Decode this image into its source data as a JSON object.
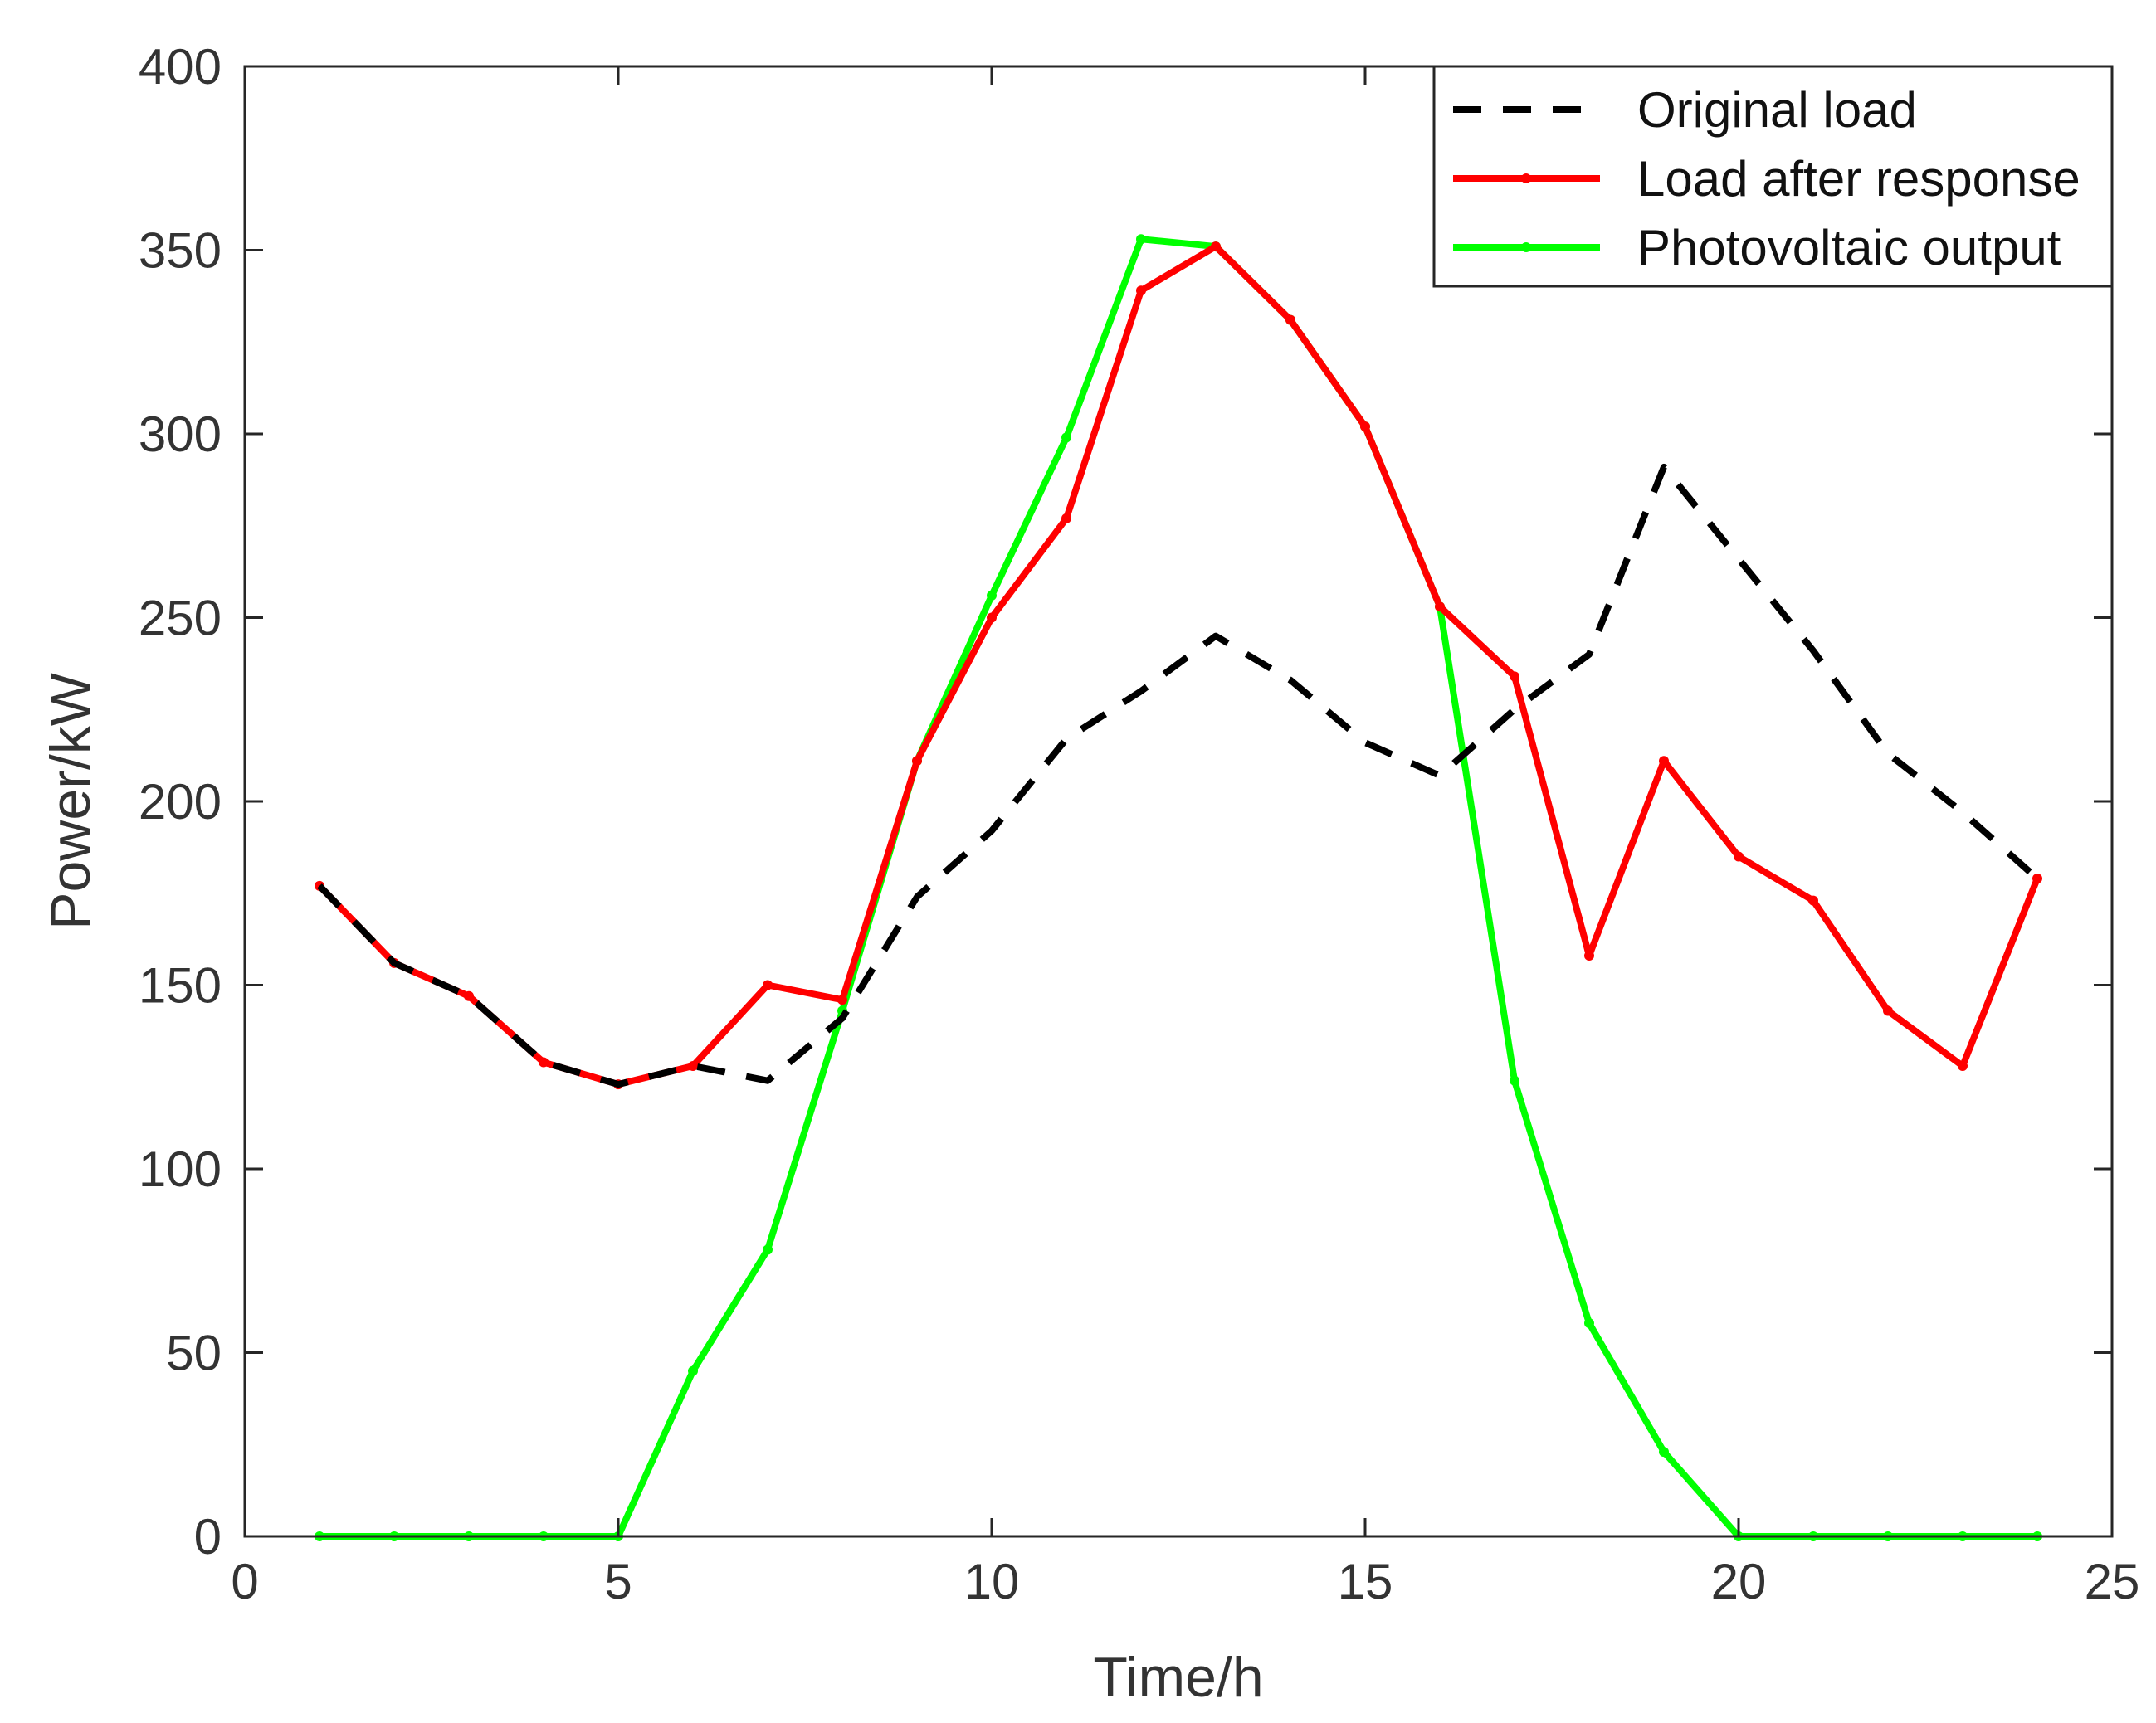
{
  "chart_data": {
    "type": "line",
    "title": "",
    "xlabel": "Time/h",
    "ylabel": "Power/kW",
    "xlim": [
      0,
      25
    ],
    "ylim": [
      0,
      400
    ],
    "xticks": [
      0,
      5,
      10,
      15,
      20,
      25
    ],
    "yticks": [
      0,
      50,
      100,
      150,
      200,
      250,
      300,
      350,
      400
    ],
    "grid": false,
    "legend_position": "top-right",
    "x": [
      1,
      2,
      3,
      4,
      5,
      6,
      7,
      8,
      9,
      10,
      11,
      12,
      13,
      14,
      15,
      16,
      17,
      18,
      19,
      20,
      21,
      22,
      23,
      24
    ],
    "series": [
      {
        "name": "Original load",
        "color": "#000000",
        "style": "dashed",
        "markers": false,
        "values": [
          177,
          156,
          147,
          129,
          123,
          128,
          124,
          141,
          174,
          192,
          217,
          230,
          245,
          233,
          216,
          207,
          225,
          240,
          291,
          266,
          241,
          213,
          197,
          179
        ]
      },
      {
        "name": "Load after response",
        "color": "#ff0000",
        "style": "solid",
        "markers": true,
        "values": [
          177,
          156,
          147,
          129,
          123,
          128,
          150,
          146,
          211,
          250,
          277,
          339,
          351,
          331,
          302,
          253,
          234,
          158,
          211,
          185,
          173,
          143,
          128,
          179
        ]
      },
      {
        "name": "Photovoltaic output",
        "color": "#00ff00",
        "style": "solid",
        "markers": true,
        "values": [
          0,
          0,
          0,
          0,
          0,
          45,
          78,
          143,
          211,
          256,
          299,
          353,
          351,
          331,
          302,
          253,
          124,
          58,
          23,
          0,
          0,
          0,
          0,
          0
        ]
      }
    ]
  }
}
